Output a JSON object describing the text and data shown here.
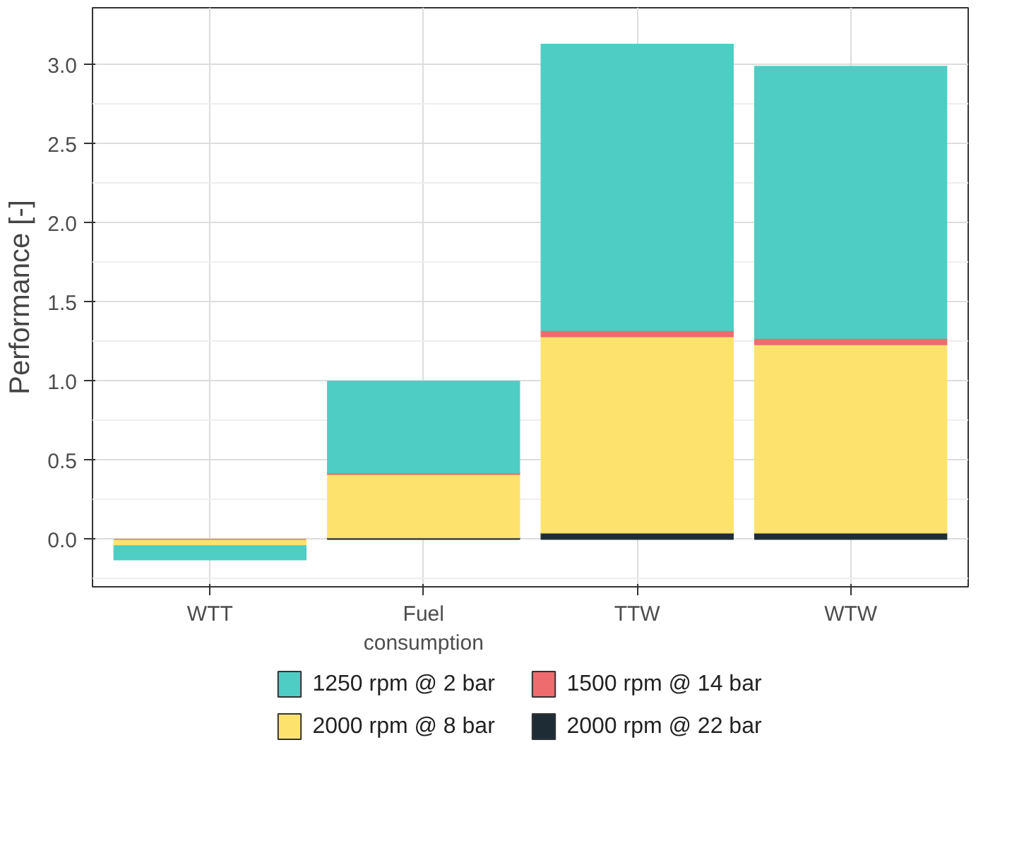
{
  "chart_data": {
    "type": "bar",
    "stacked": true,
    "ylabel": "Performance [-]",
    "categories": [
      "WTT",
      "Fuel consumption",
      "TTW",
      "WTW"
    ],
    "series": [
      {
        "name": "2000 rpm @ 22 bar",
        "color": "#1e2d35",
        "values": [
          0,
          0.01,
          0.04,
          0.04
        ]
      },
      {
        "name": "2000 rpm @ 8 bar",
        "color": "#fde36e",
        "values": [
          -0.04,
          0.4,
          1.24,
          1.19
        ]
      },
      {
        "name": "1500 rpm @ 14 bar",
        "color": "#ee6b6e",
        "values": [
          0,
          0.01,
          0.04,
          0.04
        ]
      },
      {
        "name": "1250 rpm @ 2 bar",
        "color": "#4ecdc4",
        "values": [
          -0.09,
          0.58,
          1.81,
          1.72
        ]
      }
    ],
    "ylim": [
      -0.3,
      3.36
    ],
    "yticks": [
      {
        "value": 0,
        "label": "0.0"
      },
      {
        "value": 0.5,
        "label": "0.5"
      },
      {
        "value": 1,
        "label": "1.0"
      },
      {
        "value": 1.5,
        "label": "1.5"
      },
      {
        "value": 2,
        "label": "2.0"
      },
      {
        "value": 2.5,
        "label": "2.5"
      },
      {
        "value": 3,
        "label": "3.0"
      }
    ],
    "grid": true,
    "legend": "bottom"
  }
}
